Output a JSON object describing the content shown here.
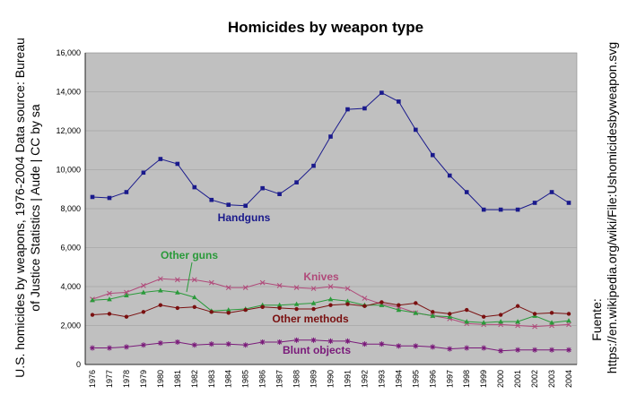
{
  "chart_data": {
    "type": "line",
    "title": "Homicides by weapon type",
    "xlabel": "",
    "ylabel": "",
    "ylim": [
      0,
      16000
    ],
    "yticks": [
      "0",
      "2,000",
      "4,000",
      "6,000",
      "8,000",
      "10,000",
      "12,000",
      "14,000",
      "16,000"
    ],
    "ytick_values": [
      0,
      2000,
      4000,
      6000,
      8000,
      10000,
      12000,
      14000,
      16000
    ],
    "grid": true,
    "legend": "direct labels on plot",
    "x": [
      1976,
      1977,
      1978,
      1979,
      1980,
      1981,
      1982,
      1983,
      1984,
      1985,
      1986,
      1987,
      1988,
      1989,
      1990,
      1991,
      1992,
      1993,
      1994,
      1995,
      1996,
      1997,
      1998,
      1999,
      2000,
      2001,
      2002,
      2003,
      2004
    ],
    "series": [
      {
        "name": "Handguns",
        "color": "#1a1a8c",
        "marker": "square",
        "values": [
          8600,
          8550,
          8850,
          9850,
          10550,
          10300,
          9100,
          8450,
          8200,
          8150,
          9050,
          8750,
          9350,
          10200,
          11700,
          13100,
          13150,
          13950,
          13500,
          12050,
          10750,
          9700,
          8850,
          7950,
          7950,
          7950,
          8300,
          8850,
          8300
        ]
      },
      {
        "name": "Knives",
        "color": "#b04a7a",
        "marker": "x",
        "values": [
          3350,
          3650,
          3700,
          4050,
          4400,
          4350,
          4350,
          4200,
          3950,
          3950,
          4200,
          4050,
          3950,
          3900,
          4000,
          3900,
          3400,
          3100,
          2950,
          2650,
          2500,
          2350,
          2100,
          2050,
          2050,
          2000,
          1950,
          2000,
          2050
        ]
      },
      {
        "name": "Other guns",
        "color": "#2a9a3a",
        "marker": "triangle",
        "values": [
          3300,
          3350,
          3550,
          3700,
          3800,
          3700,
          3450,
          2750,
          2800,
          2850,
          3050,
          3050,
          3100,
          3150,
          3350,
          3250,
          3050,
          3050,
          2800,
          2650,
          2500,
          2450,
          2200,
          2150,
          2200,
          2200,
          2500,
          2150,
          2250
        ]
      },
      {
        "name": "Other methods",
        "color": "#7a1010",
        "marker": "circle",
        "values": [
          2550,
          2600,
          2450,
          2700,
          3050,
          2900,
          2950,
          2700,
          2650,
          2800,
          2950,
          2900,
          2850,
          2850,
          3050,
          3100,
          3000,
          3200,
          3050,
          3150,
          2700,
          2600,
          2800,
          2450,
          2550,
          3000,
          2600,
          2650,
          2600
        ]
      },
      {
        "name": "Blunt objects",
        "color": "#7a1a7a",
        "marker": "star",
        "values": [
          850,
          850,
          900,
          1000,
          1100,
          1150,
          1000,
          1050,
          1050,
          1000,
          1150,
          1150,
          1250,
          1250,
          1200,
          1200,
          1050,
          1050,
          950,
          950,
          900,
          800,
          850,
          850,
          700,
          750,
          750,
          750,
          750
        ]
      }
    ],
    "series_label_text": {
      "handguns": "Handguns",
      "knives": "Knives",
      "other_guns": "Other guns",
      "other_methods": "Other methods",
      "blunt_objects": "Blunt objects"
    },
    "plot_background": "#c0c0c0"
  },
  "side_text": {
    "left_line1": "U.S. homicides by weapons, 1976-2004 Data source: Bureau",
    "left_line2": "of Justice Statistics | Aude | CC by sa",
    "right_line1": "Fuente:",
    "right_line2": "https://en.wikipedia.org/wiki/File:Ushomicidesbyweapon.svg"
  }
}
